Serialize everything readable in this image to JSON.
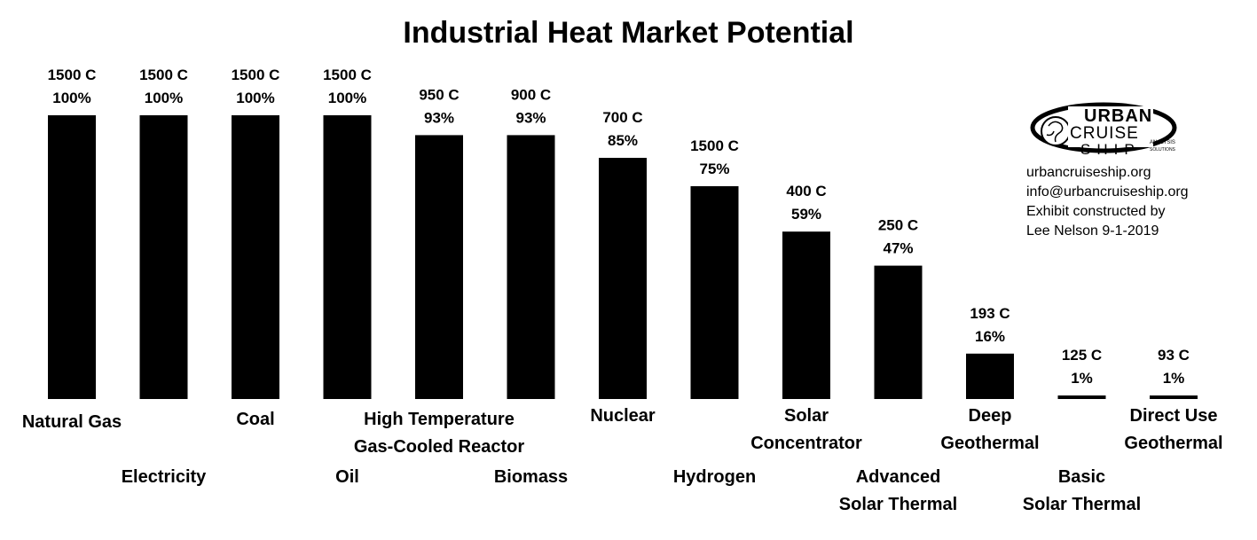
{
  "chart_data": {
    "type": "bar",
    "title": "Industrial Heat Market Potential",
    "xlabel": "",
    "ylabel": "",
    "ylim": [
      0,
      100
    ],
    "grid": false,
    "legend": "none",
    "bar_color": "#000000",
    "categories": [
      [
        "Natural Gas"
      ],
      [
        "Electricity"
      ],
      [
        "Coal"
      ],
      [
        "Oil"
      ],
      [
        "High Temperature",
        "Gas-Cooled Reactor"
      ],
      [
        "Biomass"
      ],
      [
        "Nuclear"
      ],
      [
        "Hydrogen"
      ],
      [
        "Solar",
        "Concentrator"
      ],
      [
        "Advanced",
        "Solar Thermal"
      ],
      [
        "Deep",
        "Geothermal"
      ],
      [
        "Basic",
        "Solar Thermal"
      ],
      [
        "Direct Use",
        "Geothermal"
      ]
    ],
    "values": [
      100,
      100,
      100,
      100,
      93,
      93,
      85,
      75,
      59,
      47,
      16,
      1,
      1
    ],
    "temperature_labels": [
      "1500 C",
      "1500 C",
      "1500 C",
      "1500 C",
      "950 C",
      "900 C",
      "700 C",
      "1500 C",
      "400 C",
      "250 C",
      "193 C",
      "125 C",
      "93 C"
    ],
    "percent_labels": [
      "100%",
      "100%",
      "100%",
      "100%",
      "93%",
      "93%",
      "85%",
      "75%",
      "59%",
      "47%",
      "16%",
      "1%",
      "1%"
    ]
  },
  "logo": {
    "line1": "URBAN",
    "line2": "CRUISE",
    "line3": "SHIP",
    "tag1": "ANALYSIS",
    "tag2": "SOLUTIONS"
  },
  "attribution": {
    "website": "urbancruiseship.org",
    "email": "info@urbancruiseship.org",
    "credit_line1": "Exhibit constructed by",
    "credit_line2": "Lee Nelson 9-1-2019"
  }
}
